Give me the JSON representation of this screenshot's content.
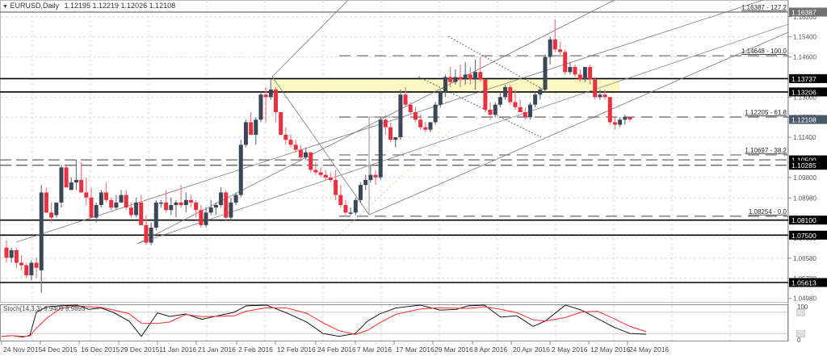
{
  "window": {
    "symbol_title": "EURUSD,Daily",
    "ohlc": "1.12195 1.12219 1.12026 1.12108",
    "collapse_icon": "triangle-down-icon"
  },
  "colors": {
    "bull": "#3b4656",
    "bear": "#e8303f",
    "stoch_main": "#000000",
    "stoch_signal": "#ff2a2a",
    "zone_fill": "#fbf7c2",
    "grid": "#dcdcdc",
    "label_bg_dark": "#000000",
    "label_bg_price": "#4b5966",
    "label_bg_gray": "#707070"
  },
  "price_axis": {
    "ticks": [
      "1.16200",
      "1.15400",
      "1.14600",
      "1.13000",
      "1.12200",
      "1.11400",
      "1.09800",
      "1.08980",
      "1.07380",
      "1.06580",
      "1.05780",
      "1.04980"
    ],
    "tags": [
      {
        "value": "1.16387",
        "style": "gray"
      },
      {
        "value": "1.13737",
        "style": "dark"
      },
      {
        "value": "1.13206",
        "style": "dark"
      },
      {
        "value": "1.12108",
        "style": "price"
      },
      {
        "value": "1.10500",
        "style": "dark"
      },
      {
        "value": "1.10285",
        "style": "dark"
      },
      {
        "value": "1.08100",
        "style": "dark"
      },
      {
        "value": "1.07500",
        "style": "dark"
      },
      {
        "value": "1.05613",
        "style": "dark"
      }
    ]
  },
  "fib_labels": [
    {
      "text": "1.16387 - 127.2"
    },
    {
      "text": "1.14648 - 100.0"
    },
    {
      "text": "1.12205 - 61.8"
    },
    {
      "text": "1.10697 - 38.2"
    },
    {
      "text": "1.08254 - 0.0"
    }
  ],
  "stoch": {
    "title": "Stoch(14,3,3) 9.9409 8.9893",
    "levels": [
      "100",
      "80",
      "20",
      "0"
    ]
  },
  "time_axis": {
    "labels": [
      "24 Nov 2015",
      "4 Dec 2015",
      "16 Dec 2015",
      "29 Dec 2015",
      "11 Jan 2016",
      "21 Jan 2016",
      "2 Feb 2016",
      "12 Feb 2016",
      "24 Feb 2016",
      "7 Mar 2016",
      "17 Mar 2016",
      "29 Mar 2016",
      "8 Apr 2016",
      "20 Apr 2016",
      "2 May 2016",
      "12 May 2016",
      "24 May 2016"
    ]
  },
  "chart_data": {
    "type": "candlestick",
    "title": "EURUSD,Daily",
    "instrument": "EURUSD",
    "timeframe": "Daily",
    "last_ohlc": {
      "open": 1.12195,
      "high": 1.12219,
      "low": 1.12026,
      "close": 1.12108
    },
    "x_range": [
      "24 Nov 2015",
      "24 May 2016"
    ],
    "y_range": [
      1.0498,
      1.1655
    ],
    "horizontal_levels": [
      1.16387,
      1.13737,
      1.13206,
      1.105,
      1.10285,
      1.081,
      1.075,
      1.05613
    ],
    "supply_zone": {
      "from": 1.13206,
      "to": 1.13737,
      "start": "12 Feb 2016",
      "end": "19 May 2016"
    },
    "fibonacci": [
      {
        "level": "127.2",
        "price": 1.16387
      },
      {
        "level": "100.0",
        "price": 1.14648
      },
      {
        "level": "61.8",
        "price": 1.12205
      },
      {
        "level": "38.2",
        "price": 1.10697
      },
      {
        "level": "0.0",
        "price": 1.08254
      }
    ],
    "candles_approx": [
      [
        1.07,
        1.073,
        1.064,
        1.066
      ],
      [
        1.066,
        1.07,
        1.064,
        1.069
      ],
      [
        1.069,
        1.07,
        1.062,
        1.064
      ],
      [
        1.064,
        1.067,
        1.061,
        1.063
      ],
      [
        1.063,
        1.064,
        1.058,
        1.059
      ],
      [
        1.059,
        1.065,
        1.057,
        1.064
      ],
      [
        1.064,
        1.066,
        1.058,
        1.062
      ],
      [
        1.061,
        1.095,
        1.052,
        1.092
      ],
      [
        1.092,
        1.094,
        1.084,
        1.084
      ],
      [
        1.084,
        1.088,
        1.08,
        1.082
      ],
      [
        1.083,
        1.088,
        1.082,
        1.088
      ],
      [
        1.088,
        1.103,
        1.086,
        1.102
      ],
      [
        1.102,
        1.103,
        1.095,
        1.094
      ],
      [
        1.093,
        1.098,
        1.093,
        1.096
      ],
      [
        1.096,
        1.105,
        1.093,
        1.097
      ],
      [
        1.097,
        1.104,
        1.092,
        1.092
      ],
      [
        1.092,
        1.098,
        1.087,
        1.09
      ],
      [
        1.09,
        1.094,
        1.082,
        1.082
      ],
      [
        1.082,
        1.088,
        1.08,
        1.087
      ],
      [
        1.087,
        1.093,
        1.086,
        1.092
      ],
      [
        1.092,
        1.096,
        1.088,
        1.089
      ],
      [
        1.089,
        1.09,
        1.085,
        1.086
      ],
      [
        1.086,
        1.091,
        1.085,
        1.088
      ],
      [
        1.088,
        1.093,
        1.088,
        1.091
      ],
      [
        1.091,
        1.093,
        1.085,
        1.086
      ],
      [
        1.086,
        1.088,
        1.082,
        1.083
      ],
      [
        1.083,
        1.09,
        1.082,
        1.088
      ],
      [
        1.088,
        1.091,
        1.079,
        1.079
      ],
      [
        1.079,
        1.083,
        1.071,
        1.072
      ],
      [
        1.072,
        1.08,
        1.071,
        1.078
      ],
      [
        1.078,
        1.089,
        1.077,
        1.088
      ],
      [
        1.088,
        1.089,
        1.086,
        1.088
      ],
      [
        1.088,
        1.093,
        1.084,
        1.085
      ],
      [
        1.085,
        1.09,
        1.083,
        1.087
      ],
      [
        1.087,
        1.089,
        1.082,
        1.088
      ],
      [
        1.088,
        1.095,
        1.086,
        1.087
      ],
      [
        1.087,
        1.092,
        1.084,
        1.089
      ],
      [
        1.089,
        1.091,
        1.086,
        1.088
      ],
      [
        1.088,
        1.089,
        1.082,
        1.085
      ],
      [
        1.085,
        1.087,
        1.078,
        1.079
      ],
      [
        1.079,
        1.086,
        1.078,
        1.084
      ],
      [
        1.084,
        1.089,
        1.083,
        1.086
      ],
      [
        1.086,
        1.088,
        1.083,
        1.087
      ],
      [
        1.087,
        1.094,
        1.086,
        1.092
      ],
      [
        1.092,
        1.093,
        1.081,
        1.082
      ],
      [
        1.082,
        1.09,
        1.081,
        1.088
      ],
      [
        1.088,
        1.092,
        1.087,
        1.091
      ],
      [
        1.091,
        1.113,
        1.09,
        1.111
      ],
      [
        1.111,
        1.121,
        1.11,
        1.12
      ],
      [
        1.12,
        1.124,
        1.115,
        1.115
      ],
      [
        1.115,
        1.122,
        1.111,
        1.121
      ],
      [
        1.121,
        1.132,
        1.12,
        1.131
      ],
      [
        1.131,
        1.134,
        1.12,
        1.13
      ],
      [
        1.13,
        1.137,
        1.129,
        1.133
      ],
      [
        1.133,
        1.134,
        1.12,
        1.124
      ],
      [
        1.124,
        1.123,
        1.115,
        1.115
      ],
      [
        1.115,
        1.118,
        1.111,
        1.113
      ],
      [
        1.113,
        1.115,
        1.11,
        1.111
      ],
      [
        1.111,
        1.113,
        1.108,
        1.109
      ],
      [
        1.109,
        1.111,
        1.105,
        1.106
      ],
      [
        1.106,
        1.11,
        1.105,
        1.108
      ],
      [
        1.108,
        1.108,
        1.1,
        1.101
      ],
      [
        1.101,
        1.104,
        1.099,
        1.1
      ],
      [
        1.1,
        1.102,
        1.098,
        1.099
      ],
      [
        1.099,
        1.101,
        1.097,
        1.098
      ],
      [
        1.098,
        1.1,
        1.096,
        1.097
      ],
      [
        1.097,
        1.101,
        1.089,
        1.091
      ],
      [
        1.091,
        1.095,
        1.086,
        1.087
      ],
      [
        1.087,
        1.089,
        1.083,
        1.084
      ],
      [
        1.084,
        1.086,
        1.083,
        1.084
      ],
      [
        1.084,
        1.09,
        1.083,
        1.089
      ],
      [
        1.089,
        1.096,
        1.088,
        1.095
      ],
      [
        1.095,
        1.099,
        1.093,
        1.097
      ],
      [
        1.097,
        1.103,
        1.096,
        1.099
      ],
      [
        1.099,
        1.101,
        1.095,
        1.098
      ],
      [
        1.098,
        1.122,
        1.097,
        1.121
      ],
      [
        1.121,
        1.123,
        1.115,
        1.118
      ],
      [
        1.118,
        1.12,
        1.112,
        1.113
      ],
      [
        1.113,
        1.114,
        1.11,
        1.114
      ],
      [
        1.114,
        1.133,
        1.113,
        1.131
      ],
      [
        1.131,
        1.134,
        1.126,
        1.127
      ],
      [
        1.127,
        1.128,
        1.123,
        1.124
      ],
      [
        1.124,
        1.126,
        1.12,
        1.121
      ],
      [
        1.121,
        1.123,
        1.117,
        1.118
      ],
      [
        1.118,
        1.12,
        1.116,
        1.117
      ],
      [
        1.117,
        1.12,
        1.116,
        1.12
      ],
      [
        1.12,
        1.128,
        1.119,
        1.127
      ],
      [
        1.127,
        1.133,
        1.126,
        1.132
      ],
      [
        1.132,
        1.139,
        1.13,
        1.138
      ],
      [
        1.138,
        1.142,
        1.134,
        1.136
      ],
      [
        1.136,
        1.141,
        1.135,
        1.138
      ],
      [
        1.138,
        1.143,
        1.134,
        1.137
      ],
      [
        1.137,
        1.144,
        1.135,
        1.139
      ],
      [
        1.139,
        1.142,
        1.135,
        1.137
      ],
      [
        1.137,
        1.145,
        1.133,
        1.14
      ],
      [
        1.14,
        1.146,
        1.136,
        1.137
      ],
      [
        1.137,
        1.137,
        1.124,
        1.125
      ],
      [
        1.125,
        1.128,
        1.121,
        1.123
      ],
      [
        1.123,
        1.128,
        1.122,
        1.127
      ],
      [
        1.127,
        1.132,
        1.126,
        1.13
      ],
      [
        1.13,
        1.135,
        1.129,
        1.134
      ],
      [
        1.134,
        1.135,
        1.127,
        1.128
      ],
      [
        1.128,
        1.133,
        1.125,
        1.126
      ],
      [
        1.126,
        1.129,
        1.124,
        1.124
      ],
      [
        1.124,
        1.126,
        1.121,
        1.122
      ],
      [
        1.122,
        1.128,
        1.121,
        1.127
      ],
      [
        1.127,
        1.132,
        1.126,
        1.131
      ],
      [
        1.131,
        1.134,
        1.129,
        1.133
      ],
      [
        1.133,
        1.147,
        1.132,
        1.146
      ],
      [
        1.146,
        1.154,
        1.143,
        1.153
      ],
      [
        1.153,
        1.161,
        1.148,
        1.149
      ],
      [
        1.149,
        1.152,
        1.147,
        1.148
      ],
      [
        1.148,
        1.149,
        1.139,
        1.14
      ],
      [
        1.14,
        1.144,
        1.139,
        1.142
      ],
      [
        1.142,
        1.143,
        1.138,
        1.139
      ],
      [
        1.139,
        1.141,
        1.136,
        1.137
      ],
      [
        1.137,
        1.142,
        1.136,
        1.142
      ],
      [
        1.142,
        1.143,
        1.135,
        1.137
      ],
      [
        1.137,
        1.138,
        1.129,
        1.13
      ],
      [
        1.13,
        1.133,
        1.129,
        1.131
      ],
      [
        1.131,
        1.133,
        1.129,
        1.13
      ],
      [
        1.13,
        1.13,
        1.119,
        1.12
      ],
      [
        1.12,
        1.122,
        1.117,
        1.119
      ],
      [
        1.119,
        1.122,
        1.118,
        1.121
      ],
      [
        1.121,
        1.123,
        1.119,
        1.122
      ],
      [
        1.12195,
        1.12219,
        1.12026,
        1.12108
      ]
    ],
    "indicator": {
      "name": "Stochastic Oscillator",
      "params": "14,3,3",
      "main": 9.9409,
      "signal": 8.9893,
      "levels": [
        20,
        80
      ],
      "range": [
        0,
        100
      ]
    }
  }
}
